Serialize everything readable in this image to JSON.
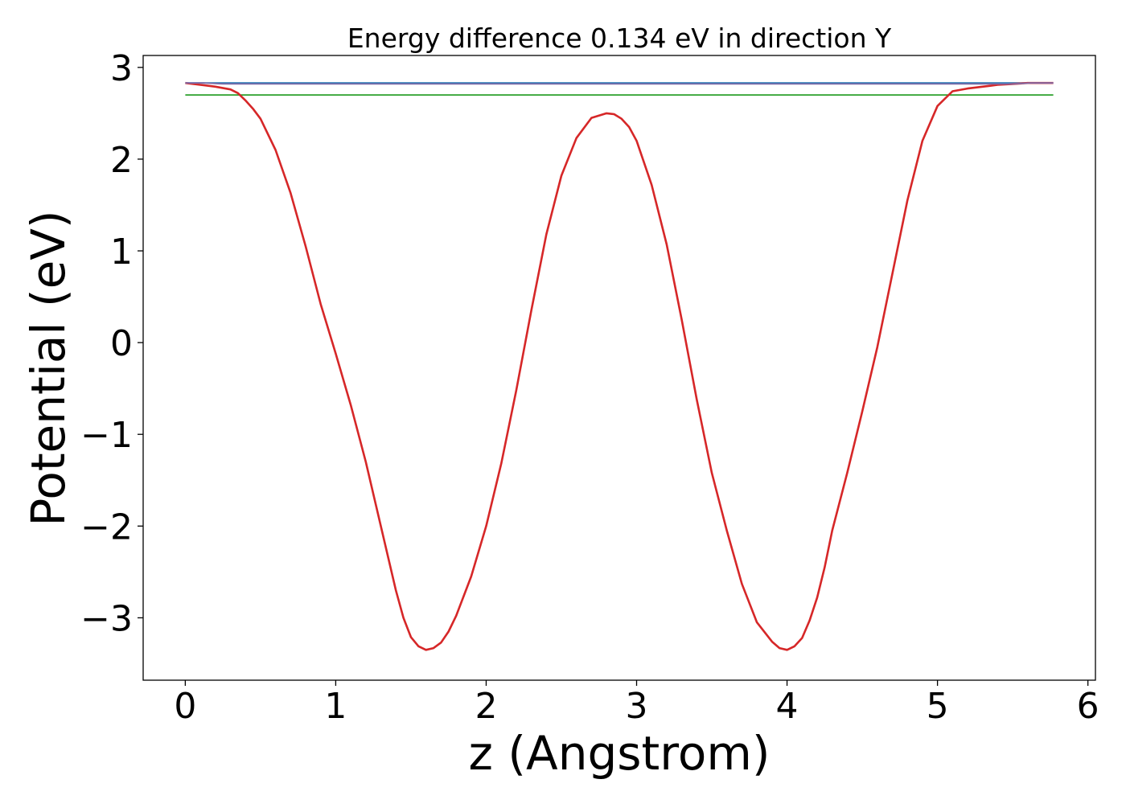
{
  "chart_data": {
    "type": "line",
    "title": "Energy difference 0.134 eV in direction Y",
    "xlabel": "z (Angstrom)",
    "ylabel": "Potential (eV)",
    "xlim": [
      -0.28,
      6.05
    ],
    "ylim": [
      -3.68,
      3.13
    ],
    "xticks": [
      0,
      1,
      2,
      3,
      4,
      5,
      6
    ],
    "xtick_labels": [
      "0",
      "1",
      "2",
      "3",
      "4",
      "5",
      "6"
    ],
    "yticks": [
      -3,
      -2,
      -1,
      0,
      1,
      2,
      3
    ],
    "ytick_labels": [
      "−3",
      "−2",
      "−1",
      "0",
      "1",
      "2",
      "3"
    ],
    "grid": false,
    "series": [
      {
        "color": "#1f77b4",
        "x": [
          0,
          5.77
        ],
        "y": [
          2.83,
          2.83
        ]
      },
      {
        "color": "#2ca02c",
        "x": [
          0,
          5.77
        ],
        "y": [
          2.7,
          2.7
        ]
      },
      {
        "color": "#d62728",
        "x": [
          0,
          0.1,
          0.2,
          0.3,
          0.35,
          0.4,
          0.45,
          0.5,
          0.6,
          0.7,
          0.8,
          0.9,
          1.0,
          1.1,
          1.2,
          1.3,
          1.4,
          1.45,
          1.5,
          1.55,
          1.6,
          1.65,
          1.7,
          1.75,
          1.8,
          1.9,
          2.0,
          2.1,
          2.2,
          2.3,
          2.4,
          2.5,
          2.6,
          2.7,
          2.8,
          2.85,
          2.9,
          2.95,
          3.0,
          3.1,
          3.2,
          3.3,
          3.4,
          3.5,
          3.6,
          3.7,
          3.8,
          3.9,
          3.95,
          4.0,
          4.05,
          4.1,
          4.15,
          4.2,
          4.25,
          4.3,
          4.4,
          4.5,
          4.6,
          4.7,
          4.8,
          4.9,
          5.0,
          5.1,
          5.2,
          5.25,
          5.3,
          5.35,
          5.4,
          5.5,
          5.6,
          5.7,
          5.77
        ],
        "y": [
          2.83,
          2.81,
          2.79,
          2.76,
          2.72,
          2.64,
          2.55,
          2.44,
          2.1,
          1.63,
          1.05,
          0.42,
          -0.12,
          -0.68,
          -1.3,
          -2.0,
          -2.7,
          -3.0,
          -3.21,
          -3.31,
          -3.35,
          -3.33,
          -3.27,
          -3.15,
          -2.98,
          -2.55,
          -2.0,
          -1.32,
          -0.52,
          0.35,
          1.18,
          1.82,
          2.23,
          2.45,
          2.5,
          2.49,
          2.44,
          2.35,
          2.2,
          1.72,
          1.07,
          0.25,
          -0.62,
          -1.42,
          -2.05,
          -2.63,
          -3.05,
          -3.26,
          -3.33,
          -3.35,
          -3.31,
          -3.22,
          -3.03,
          -2.78,
          -2.45,
          -2.05,
          -1.42,
          -0.75,
          -0.05,
          0.75,
          1.55,
          2.2,
          2.58,
          2.74,
          2.77,
          2.78,
          2.79,
          2.8,
          2.81,
          2.82,
          2.83,
          2.83,
          2.83
        ]
      },
      {
        "color": "#7f6ba8",
        "x": [
          0,
          0.12,
          0.25,
          0.35,
          5.4,
          5.5,
          5.62,
          5.77
        ],
        "y": [
          2.83,
          2.83,
          2.82,
          2.82,
          2.82,
          2.82,
          2.83,
          2.83
        ]
      }
    ]
  }
}
